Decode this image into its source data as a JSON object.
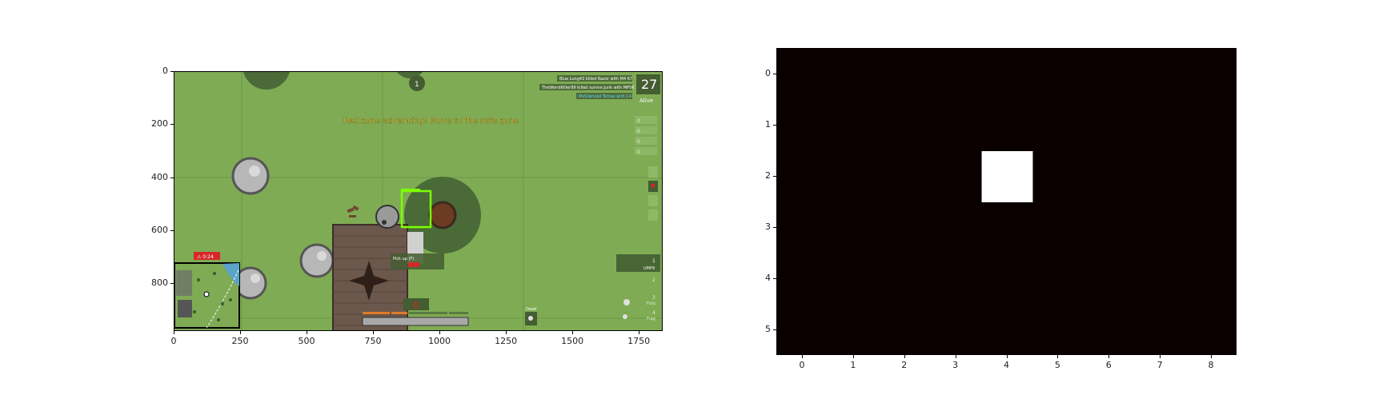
{
  "game": {
    "zone_message": "Red zone advancing! Move to the safe zone",
    "alive_count": "27",
    "alive_label": "Alive",
    "kill_feed": [
      "Blue Lung43 killed Razor with M4 67",
      "TheWorstKiller99 killed survivr.junk with MP5K",
      "MsSilenced Tomas with C4"
    ],
    "top_indicator": "1",
    "weapons": [
      {
        "slot": "1",
        "name": "UMP9"
      },
      {
        "slot": "2",
        "name": ""
      },
      {
        "slot": "3",
        "name": "Fists"
      },
      {
        "slot": "4",
        "name": "Frag"
      }
    ],
    "minimap_badge": "⚠ 0:24",
    "health_value": "0",
    "pickup_prompt": "Pick up (F)",
    "pickup_hint": "",
    "small_label": "Dead",
    "ammo_rows": [
      "0",
      "0",
      "0",
      "0"
    ],
    "colors": {
      "grass": "#7fab54",
      "grid_line": "#6d9a47",
      "tree": "#3e5a2e",
      "rock": "#c7c7c7",
      "building": "#6b574b",
      "alive_box": "#445d31",
      "red": "#d62828",
      "selection": "#7dff00"
    }
  },
  "left_axes": {
    "x_ticks": [
      "0",
      "250",
      "500",
      "750",
      "1000",
      "1250",
      "1500",
      "1750"
    ],
    "y_ticks": [
      "0",
      "200",
      "400",
      "600",
      "800"
    ]
  },
  "chart_data": {
    "type": "heatmap",
    "title": "",
    "rows": 6,
    "cols": 9,
    "x_ticks": [
      "0",
      "1",
      "2",
      "3",
      "4",
      "5",
      "6",
      "7",
      "8"
    ],
    "y_ticks": [
      "0",
      "1",
      "2",
      "3",
      "4",
      "5"
    ],
    "values": [
      [
        0,
        0,
        0,
        0,
        0,
        0,
        0,
        0,
        0
      ],
      [
        0,
        0,
        0,
        0,
        0,
        0,
        0,
        0,
        0
      ],
      [
        0,
        0,
        0,
        0,
        1,
        0,
        0,
        0,
        0
      ],
      [
        0,
        0,
        0,
        0,
        0,
        0,
        0,
        0,
        0
      ],
      [
        0,
        0,
        0,
        0,
        0,
        0,
        0,
        0,
        0
      ],
      [
        0,
        0,
        0,
        0,
        0,
        0,
        0,
        0,
        0
      ]
    ],
    "colormap": {
      "low": "#0a0000",
      "high": "#ffffff"
    }
  }
}
